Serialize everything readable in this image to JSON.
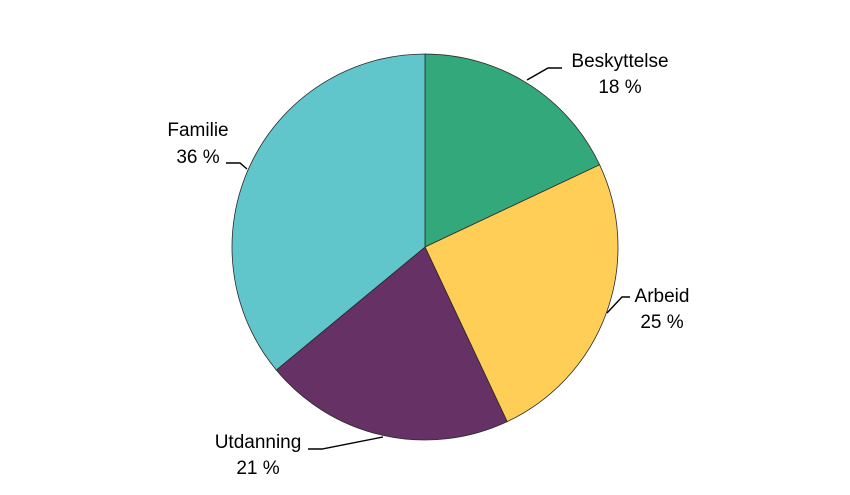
{
  "chart_data": {
    "type": "pie",
    "title": "",
    "slices": [
      {
        "label": "Beskyttelse",
        "value_label": "18 %",
        "value": 18,
        "color": "#33a87b"
      },
      {
        "label": "Arbeid",
        "value_label": "25 %",
        "value": 25,
        "color": "#ffce57"
      },
      {
        "label": "Utdanning",
        "value_label": "21 %",
        "value": 21,
        "color": "#663165"
      },
      {
        "label": "Familie",
        "value_label": "36 %",
        "value": 36,
        "color": "#61c6cb"
      }
    ],
    "start_angle": "12 o'clock",
    "direction": "clockwise",
    "legend": "none (direct labels with leader lines)"
  }
}
